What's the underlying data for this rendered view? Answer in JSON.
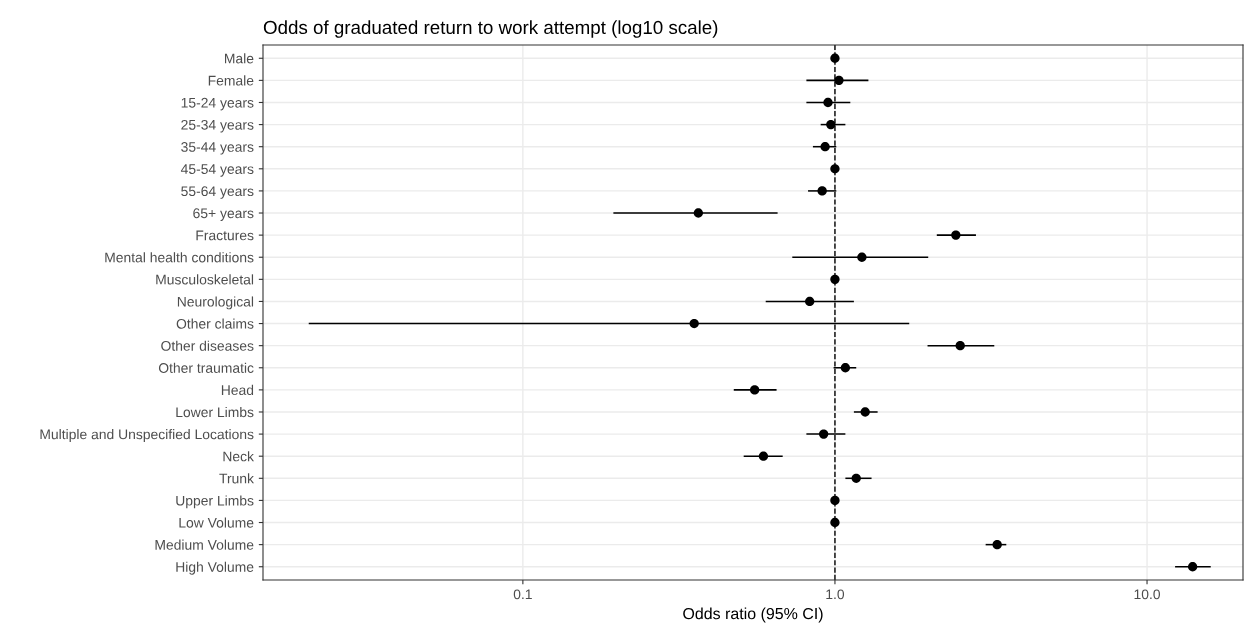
{
  "chart_data": {
    "type": "scatter",
    "title": "Odds of graduated return to work attempt (log10 scale)",
    "xlabel": "Odds ratio (95% CI)",
    "orientation": "horizontal",
    "log": "x",
    "categories": [
      "Male",
      "Female",
      "15-24 years",
      "25-34 years",
      "35-44 years",
      "45-54 years",
      "55-64 years",
      "65+ years",
      "Fractures",
      "Mental health conditions",
      "Musculoskeletal",
      "Neurological",
      "Other claims",
      "Other diseases",
      "Other traumatic",
      "Head",
      "Lower Limbs",
      "Multiple and Unspecified Locations",
      "Neck",
      "Trunk",
      "Upper Limbs",
      "Low Volume",
      "Medium Volume",
      "High Volume"
    ],
    "values": [
      1.0,
      1.03,
      0.95,
      0.97,
      0.93,
      1.0,
      0.91,
      0.365,
      2.44,
      1.22,
      1.0,
      0.83,
      0.354,
      2.52,
      1.08,
      0.553,
      1.25,
      0.92,
      0.59,
      1.17,
      1.0,
      1.0,
      3.31,
      14.0
    ],
    "errors": [
      null,
      [
        0.81,
        1.28
      ],
      [
        0.81,
        1.12
      ],
      [
        0.9,
        1.08
      ],
      [
        0.85,
        1.01
      ],
      null,
      [
        0.82,
        1.01
      ],
      [
        0.195,
        0.655
      ],
      [
        2.12,
        2.83
      ],
      [
        0.73,
        1.99
      ],
      null,
      [
        0.6,
        1.15
      ],
      [
        0.0206,
        1.73
      ],
      [
        1.98,
        3.24
      ],
      [
        0.99,
        1.17
      ],
      [
        0.474,
        0.65
      ],
      [
        1.15,
        1.37
      ],
      [
        0.81,
        1.08
      ],
      [
        0.51,
        0.68
      ],
      [
        1.08,
        1.31
      ],
      null,
      null,
      [
        3.04,
        3.54
      ],
      [
        12.3,
        16.0
      ]
    ],
    "color": "#000000",
    "marker": "circle",
    "xlim": [
      0.0147,
      20.3
    ],
    "xticks": [
      {
        "value": 0.1,
        "label": "0.1"
      },
      {
        "value": 1,
        "label": "1.0"
      },
      {
        "value": 10,
        "label": "10.0"
      }
    ],
    "ref_lines": [
      {
        "axis": "x",
        "value": 1,
        "label": null,
        "color": "#000000",
        "line_style": "dashed"
      }
    ],
    "grid": true
  }
}
